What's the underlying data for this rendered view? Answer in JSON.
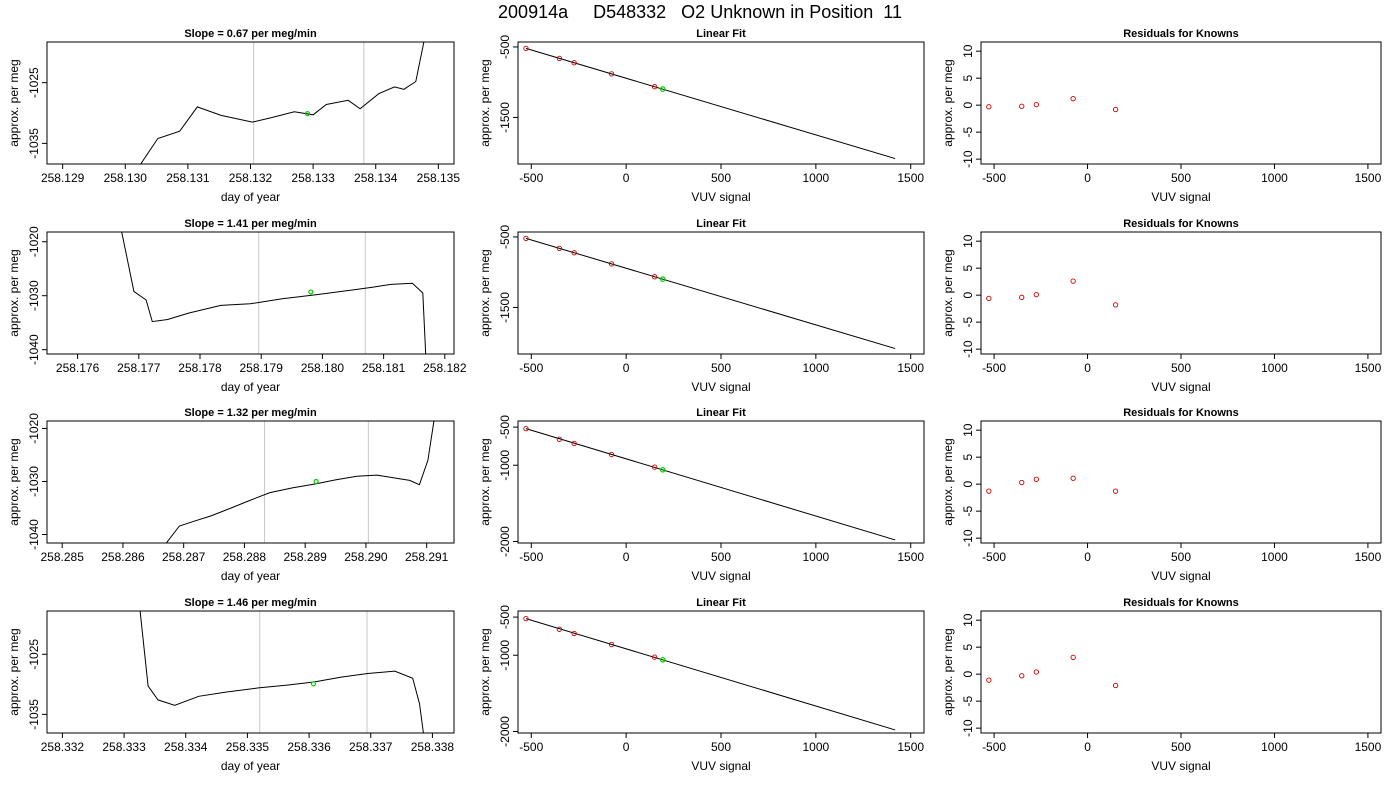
{
  "page": {
    "title": "200914a     D548332   O2 Unknown in Position  11"
  },
  "colors": {
    "line": "#000000",
    "vline": "#c8c8c8",
    "known_point": "#cc0000",
    "unknown_point": "#00cc00",
    "frame": "#000000"
  },
  "chart_data": [
    {
      "type": "line",
      "row": 0,
      "col": 0,
      "title": "Slope =  0.67  per meg/min",
      "xlabel": "day of year",
      "ylabel": "approx. per meg",
      "xlim": [
        258.12875,
        258.13525
      ],
      "ylim": [
        -1038.4,
        -1018.3
      ],
      "xticks": [
        258.129,
        258.13,
        258.131,
        258.132,
        258.133,
        258.134,
        258.135
      ],
      "xticklabels": [
        "258.129",
        "258.130",
        "258.131",
        "258.132",
        "258.133",
        "258.134",
        "258.135"
      ],
      "yticks": [
        -1025,
        -1035
      ],
      "yticklabels": [
        "-1025",
        "-1035"
      ],
      "vlines": [
        258.13205,
        258.13381
      ],
      "marker": {
        "x": 258.13291,
        "y": -1030.1
      },
      "series": [
        {
          "x": [
            258.13024,
            258.13052,
            258.13087,
            258.13115,
            258.13153,
            258.13203,
            258.13232,
            258.1327,
            258.133,
            258.13321,
            258.13356,
            258.13375,
            258.13405,
            258.1343,
            258.13445,
            258.13464,
            258.13478
          ],
          "y": [
            -1038.5,
            -1034.2,
            -1033.0,
            -1029.0,
            -1030.4,
            -1031.5,
            -1030.8,
            -1029.8,
            -1030.3,
            -1028.6,
            -1027.9,
            -1029.3,
            -1026.8,
            -1025.7,
            -1026.1,
            -1024.8,
            -1017.7
          ]
        }
      ]
    },
    {
      "type": "line",
      "row": 1,
      "col": 0,
      "title": "Slope =  1.41  per meg/min",
      "xlabel": "day of year",
      "ylabel": "approx. per meg",
      "xlim": [
        258.1755,
        258.18215
      ],
      "ylim": [
        -1040.8,
        -1018.2
      ],
      "xticks": [
        258.176,
        258.177,
        258.178,
        258.179,
        258.18,
        258.181,
        258.182
      ],
      "xticklabels": [
        "258.176",
        "258.177",
        "258.178",
        "258.179",
        "258.180",
        "258.181",
        "258.182"
      ],
      "yticks": [
        -1020,
        -1030,
        -1040
      ],
      "yticklabels": [
        "-1020",
        "-1030",
        "-1040"
      ],
      "vlines": [
        258.17896,
        258.1807
      ],
      "marker": {
        "x": 258.17981,
        "y": -1029.3
      },
      "series": [
        {
          "x": [
            258.17672,
            258.17692,
            258.17712,
            258.17722,
            258.17747,
            258.17782,
            258.17834,
            258.17882,
            258.17933,
            258.17991,
            258.18052,
            258.18083,
            258.18112,
            258.18147,
            258.18164,
            258.18169
          ],
          "y": [
            -1018.2,
            -1029.2,
            -1030.8,
            -1034.8,
            -1034.4,
            -1033.2,
            -1031.8,
            -1031.5,
            -1030.6,
            -1029.8,
            -1028.9,
            -1028.4,
            -1027.9,
            -1027.7,
            -1029.5,
            -1041.2
          ]
        }
      ]
    },
    {
      "type": "line",
      "row": 2,
      "col": 0,
      "title": "Slope =  1.32  per meg/min",
      "xlabel": "day of year",
      "ylabel": "approx. per meg",
      "xlim": [
        258.28475,
        258.29145
      ],
      "ylim": [
        -1041.6,
        -1018.6
      ],
      "xticks": [
        258.285,
        258.286,
        258.287,
        258.288,
        258.289,
        258.29,
        258.291
      ],
      "xticklabels": [
        "258.285",
        "258.286",
        "258.287",
        "258.288",
        "258.289",
        "258.290",
        "258.291"
      ],
      "yticks": [
        -1020,
        -1030,
        -1040
      ],
      "yticklabels": [
        "-1020",
        "-1030",
        "-1040"
      ],
      "vlines": [
        258.28833,
        258.29004
      ],
      "marker": {
        "x": 258.28918,
        "y": -1030.0
      },
      "series": [
        {
          "x": [
            258.2867,
            258.28693,
            258.28714,
            258.28745,
            258.28778,
            258.28808,
            258.28842,
            258.2888,
            258.28915,
            258.2895,
            258.28985,
            258.29018,
            258.2905,
            258.29072,
            258.29088,
            258.29102,
            258.29112
          ],
          "y": [
            -1041.8,
            -1038.4,
            -1037.6,
            -1036.5,
            -1035.0,
            -1033.6,
            -1032.1,
            -1031.2,
            -1030.5,
            -1029.7,
            -1029.0,
            -1028.8,
            -1029.4,
            -1029.8,
            -1030.6,
            -1026.0,
            -1018.5
          ]
        }
      ]
    },
    {
      "type": "line",
      "row": 3,
      "col": 0,
      "title": "Slope =  1.46  per meg/min",
      "xlabel": "day of year",
      "ylabel": "approx. per meg",
      "xlim": [
        258.33175,
        258.33835
      ],
      "ylim": [
        -1038.1,
        -1017.8
      ],
      "xticks": [
        258.332,
        258.333,
        258.334,
        258.335,
        258.336,
        258.337,
        258.338
      ],
      "xticklabels": [
        "258.332",
        "258.333",
        "258.334",
        "258.335",
        "258.336",
        "258.337",
        "258.338"
      ],
      "yticks": [
        -1025,
        -1035
      ],
      "yticklabels": [
        "-1025",
        "-1035"
      ],
      "vlines": [
        258.3352,
        258.33694
      ],
      "marker": {
        "x": 258.33607,
        "y": -1029.9
      },
      "series": [
        {
          "x": [
            258.33326,
            258.33339,
            258.33355,
            258.33382,
            258.33421,
            258.33465,
            258.33518,
            258.33568,
            258.33609,
            258.33652,
            258.33695,
            258.33739,
            258.33768,
            258.33779,
            258.33786
          ],
          "y": [
            -1017.8,
            -1030.3,
            -1032.6,
            -1033.5,
            -1032.0,
            -1031.3,
            -1030.6,
            -1030.1,
            -1029.6,
            -1028.8,
            -1028.2,
            -1027.8,
            -1029.0,
            -1033.2,
            -1038.6
          ]
        }
      ]
    },
    {
      "type": "scatter",
      "row": 0,
      "col": 1,
      "title": "Linear Fit",
      "xlabel": "VUV signal",
      "ylabel": "approx. per meg",
      "xlim": [
        -570,
        1570
      ],
      "ylim": [
        -2160,
        -430
      ],
      "xticks": [
        -500,
        0,
        500,
        1000,
        1500
      ],
      "xticklabels": [
        "-500",
        "0",
        "500",
        "1000",
        "1500"
      ],
      "yticks": [
        -500,
        -1500
      ],
      "yticklabels": [
        "-500",
        "-1500"
      ],
      "fit_line": {
        "x": [
          -528,
          1418
        ],
        "y": [
          -520,
          -2083
        ]
      },
      "knowns": {
        "x": [
          -528,
          -352,
          -274,
          -77,
          150
        ],
        "y": [
          -520,
          -662,
          -724,
          -882,
          -1064
        ]
      },
      "unknown": {
        "x": 193,
        "y": -1098
      }
    },
    {
      "type": "scatter",
      "row": 1,
      "col": 1,
      "title": "Linear Fit",
      "xlabel": "VUV signal",
      "ylabel": "approx. per meg",
      "xlim": [
        -570,
        1570
      ],
      "ylim": [
        -2160,
        -430
      ],
      "xticks": [
        -500,
        0,
        500,
        1000,
        1500
      ],
      "xticklabels": [
        "-500",
        "0",
        "500",
        "1000",
        "1500"
      ],
      "yticks": [
        -500,
        -1500
      ],
      "yticklabels": [
        "-500",
        "-1500"
      ],
      "fit_line": {
        "x": [
          -528,
          1418
        ],
        "y": [
          -520,
          -2083
        ]
      },
      "knowns": {
        "x": [
          -528,
          -352,
          -274,
          -77,
          150
        ],
        "y": [
          -520,
          -662,
          -724,
          -882,
          -1064
        ]
      },
      "unknown": {
        "x": 193,
        "y": -1098
      }
    },
    {
      "type": "scatter",
      "row": 2,
      "col": 1,
      "title": "Linear Fit",
      "xlabel": "VUV signal",
      "ylabel": "approx. per meg",
      "xlim": [
        -570,
        1570
      ],
      "ylim": [
        -2020,
        -420
      ],
      "xticks": [
        -500,
        0,
        500,
        1000,
        1500
      ],
      "xticklabels": [
        "-500",
        "0",
        "500",
        "1000",
        "1500"
      ],
      "yticks": [
        -500,
        -1000,
        -2000
      ],
      "yticklabels": [
        "-500",
        "-1000",
        "-2000"
      ],
      "fit_line": {
        "x": [
          -528,
          1418
        ],
        "y": [
          -520,
          -1980
        ]
      },
      "knowns": {
        "x": [
          -528,
          -352,
          -274,
          -77,
          150
        ],
        "y": [
          -520,
          -660,
          -715,
          -860,
          -1025
        ]
      },
      "unknown": {
        "x": 193,
        "y": -1060
      }
    },
    {
      "type": "scatter",
      "row": 3,
      "col": 1,
      "title": "Linear Fit",
      "xlabel": "VUV signal",
      "ylabel": "approx. per meg",
      "xlim": [
        -570,
        1570
      ],
      "ylim": [
        -2020,
        -420
      ],
      "xticks": [
        -500,
        0,
        500,
        1000,
        1500
      ],
      "xticklabels": [
        "-500",
        "0",
        "500",
        "1000",
        "1500"
      ],
      "yticks": [
        -500,
        -1000,
        -2000
      ],
      "yticklabels": [
        "-500",
        "-1000",
        "-2000"
      ],
      "fit_line": {
        "x": [
          -528,
          1418
        ],
        "y": [
          -520,
          -1980
        ]
      },
      "knowns": {
        "x": [
          -528,
          -352,
          -274,
          -77,
          150
        ],
        "y": [
          -520,
          -660,
          -715,
          -860,
          -1025
        ]
      },
      "unknown": {
        "x": 193,
        "y": -1060
      }
    },
    {
      "type": "scatter",
      "row": 0,
      "col": 2,
      "title": "Residuals for Knowns",
      "xlabel": "VUV signal",
      "ylabel": "approx. per meg",
      "xlim": [
        -570,
        1570
      ],
      "ylim": [
        -10.9,
        11.7
      ],
      "xticks": [
        -500,
        0,
        500,
        1000,
        1500
      ],
      "xticklabels": [
        "-500",
        "0",
        "500",
        "1000",
        "1500"
      ],
      "yticks": [
        -10,
        -5,
        0,
        5,
        10
      ],
      "yticklabels": [
        "-10",
        "-5",
        "0",
        "5",
        "10"
      ],
      "knowns": {
        "x": [
          -528,
          -352,
          -274,
          -77,
          150
        ],
        "y": [
          -0.3,
          -0.2,
          0.1,
          1.2,
          -0.8
        ]
      }
    },
    {
      "type": "scatter",
      "row": 1,
      "col": 2,
      "title": "Residuals for Knowns",
      "xlabel": "VUV signal",
      "ylabel": "approx. per meg",
      "xlim": [
        -570,
        1570
      ],
      "ylim": [
        -10.9,
        11.7
      ],
      "xticks": [
        -500,
        0,
        500,
        1000,
        1500
      ],
      "xticklabels": [
        "-500",
        "0",
        "500",
        "1000",
        "1500"
      ],
      "yticks": [
        -10,
        -5,
        0,
        5,
        10
      ],
      "yticklabels": [
        "-10",
        "-5",
        "0",
        "5",
        "10"
      ],
      "knowns": {
        "x": [
          -528,
          -352,
          -274,
          -77,
          150
        ],
        "y": [
          -0.6,
          -0.4,
          0.1,
          2.6,
          -1.8
        ]
      }
    },
    {
      "type": "scatter",
      "row": 2,
      "col": 2,
      "title": "Residuals for Knowns",
      "xlabel": "VUV signal",
      "ylabel": "approx. per meg",
      "xlim": [
        -570,
        1570
      ],
      "ylim": [
        -10.9,
        11.7
      ],
      "xticks": [
        -500,
        0,
        500,
        1000,
        1500
      ],
      "xticklabels": [
        "-500",
        "0",
        "500",
        "1000",
        "1500"
      ],
      "yticks": [
        -10,
        -5,
        0,
        5,
        10
      ],
      "yticklabels": [
        "-10",
        "-5",
        "0",
        "5",
        "10"
      ],
      "knowns": {
        "x": [
          -528,
          -352,
          -274,
          -77,
          150
        ],
        "y": [
          -1.3,
          0.3,
          0.9,
          1.1,
          -1.3
        ]
      }
    },
    {
      "type": "scatter",
      "row": 3,
      "col": 2,
      "title": "Residuals for Knowns",
      "xlabel": "VUV signal",
      "ylabel": "approx. per meg",
      "xlim": [
        -570,
        1570
      ],
      "ylim": [
        -10.9,
        11.7
      ],
      "xticks": [
        -500,
        0,
        500,
        1000,
        1500
      ],
      "xticklabels": [
        "-500",
        "0",
        "500",
        "1000",
        "1500"
      ],
      "yticks": [
        -10,
        -5,
        0,
        5,
        10
      ],
      "yticklabels": [
        "-10",
        "-5",
        "0",
        "5",
        "10"
      ],
      "knowns": {
        "x": [
          -528,
          -352,
          -274,
          -77,
          150
        ],
        "y": [
          -1.1,
          -0.3,
          0.4,
          3.1,
          -2.1
        ]
      }
    }
  ]
}
